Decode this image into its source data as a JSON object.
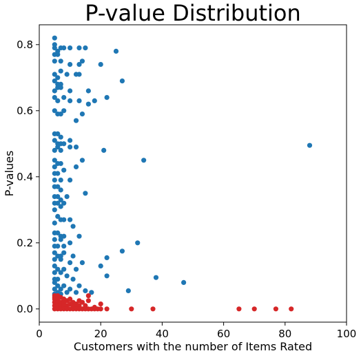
{
  "chart_data": {
    "type": "scatter",
    "title": "P-value Distribution",
    "xlabel": "Customers with the number of Items Rated",
    "ylabel": "P-values",
    "xlim": [
      0,
      100
    ],
    "ylim": [
      -0.04,
      0.86
    ],
    "xticks": [
      0,
      20,
      40,
      60,
      80,
      100
    ],
    "yticks": [
      0.0,
      0.2,
      0.4,
      0.6,
      0.8
    ],
    "xtick_labels": [
      "0",
      "20",
      "40",
      "60",
      "80",
      "100"
    ],
    "ytick_labels": [
      "0.0",
      "0.2",
      "0.4",
      "0.6",
      "0.8"
    ],
    "grid": false,
    "colors": {
      "high": "#1f77b4",
      "low": "#d62728"
    },
    "series": [
      {
        "color": "#1f77b4",
        "points": [
          [
            5,
            0.82
          ],
          [
            5,
            0.8
          ],
          [
            5,
            0.79
          ],
          [
            6,
            0.78
          ],
          [
            7,
            0.79
          ],
          [
            8,
            0.79
          ],
          [
            10,
            0.79
          ],
          [
            13,
            0.79
          ],
          [
            15,
            0.79
          ],
          [
            5,
            0.77
          ],
          [
            6,
            0.77
          ],
          [
            5,
            0.75
          ],
          [
            7,
            0.75
          ],
          [
            14,
            0.75
          ],
          [
            10,
            0.74
          ],
          [
            13,
            0.74
          ],
          [
            20,
            0.74
          ],
          [
            25,
            0.78
          ],
          [
            5,
            0.71
          ],
          [
            6,
            0.7
          ],
          [
            7,
            0.72
          ],
          [
            9,
            0.71
          ],
          [
            12,
            0.71
          ],
          [
            13,
            0.71
          ],
          [
            5,
            0.69
          ],
          [
            6,
            0.68
          ],
          [
            7,
            0.68
          ],
          [
            27,
            0.69
          ],
          [
            5,
            0.66
          ],
          [
            6,
            0.67
          ],
          [
            7,
            0.67
          ],
          [
            10,
            0.66
          ],
          [
            16,
            0.66
          ],
          [
            5,
            0.64
          ],
          [
            6,
            0.63
          ],
          [
            8,
            0.64
          ],
          [
            10,
            0.63
          ],
          [
            13,
            0.63
          ],
          [
            16,
            0.62
          ],
          [
            18,
            0.63
          ],
          [
            22,
            0.64
          ],
          [
            5,
            0.6
          ],
          [
            6,
            0.59
          ],
          [
            7,
            0.59
          ],
          [
            8,
            0.6
          ],
          [
            14,
            0.59
          ],
          [
            12,
            0.57
          ],
          [
            5,
            0.53
          ],
          [
            6,
            0.53
          ],
          [
            7,
            0.52
          ],
          [
            5,
            0.51
          ],
          [
            6,
            0.5
          ],
          [
            7,
            0.5
          ],
          [
            8,
            0.5
          ],
          [
            10,
            0.51
          ],
          [
            6,
            0.49
          ],
          [
            5,
            0.48
          ],
          [
            7,
            0.48
          ],
          [
            10,
            0.49
          ],
          [
            12,
            0.49
          ],
          [
            21,
            0.48
          ],
          [
            88,
            0.495
          ],
          [
            5,
            0.45
          ],
          [
            6,
            0.44
          ],
          [
            7,
            0.44
          ],
          [
            5,
            0.43
          ],
          [
            8,
            0.42
          ],
          [
            12,
            0.43
          ],
          [
            14,
            0.45
          ],
          [
            34,
            0.45
          ],
          [
            5,
            0.41
          ],
          [
            6,
            0.41
          ],
          [
            5,
            0.39
          ],
          [
            7,
            0.39
          ],
          [
            10,
            0.39
          ],
          [
            5,
            0.37
          ],
          [
            6,
            0.37
          ],
          [
            7,
            0.36
          ],
          [
            15,
            0.35
          ],
          [
            5,
            0.34
          ],
          [
            6,
            0.34
          ],
          [
            7,
            0.33
          ],
          [
            9,
            0.34
          ],
          [
            5,
            0.32
          ],
          [
            6,
            0.32
          ],
          [
            8,
            0.32
          ],
          [
            5,
            0.3
          ],
          [
            7,
            0.31
          ],
          [
            6,
            0.28
          ],
          [
            7,
            0.27
          ],
          [
            5,
            0.26
          ],
          [
            8,
            0.27
          ],
          [
            10,
            0.27
          ],
          [
            5,
            0.23
          ],
          [
            6,
            0.23
          ],
          [
            7,
            0.22
          ],
          [
            8,
            0.22
          ],
          [
            11,
            0.25
          ],
          [
            5,
            0.21
          ],
          [
            7,
            0.21
          ],
          [
            13,
            0.22
          ],
          [
            5,
            0.19
          ],
          [
            6,
            0.19
          ],
          [
            8,
            0.19
          ],
          [
            10,
            0.2
          ],
          [
            32,
            0.2
          ],
          [
            5,
            0.17
          ],
          [
            6,
            0.16
          ],
          [
            7,
            0.16
          ],
          [
            8,
            0.17
          ],
          [
            11,
            0.16
          ],
          [
            27,
            0.175
          ],
          [
            5,
            0.15
          ],
          [
            7,
            0.15
          ],
          [
            10,
            0.14
          ],
          [
            14,
            0.14
          ],
          [
            22,
            0.155
          ],
          [
            5,
            0.13
          ],
          [
            6,
            0.12
          ],
          [
            8,
            0.12
          ],
          [
            5,
            0.11
          ],
          [
            7,
            0.11
          ],
          [
            12,
            0.12
          ],
          [
            20,
            0.13
          ],
          [
            5,
            0.09
          ],
          [
            6,
            0.09
          ],
          [
            9,
            0.1
          ],
          [
            11,
            0.09
          ],
          [
            22,
            0.1
          ],
          [
            38,
            0.095
          ],
          [
            5,
            0.08
          ],
          [
            6,
            0.07
          ],
          [
            8,
            0.07
          ],
          [
            10,
            0.06
          ],
          [
            13,
            0.07
          ],
          [
            47,
            0.08
          ],
          [
            5,
            0.06
          ],
          [
            7,
            0.06
          ],
          [
            15,
            0.055
          ],
          [
            29,
            0.055
          ],
          [
            6,
            0.05
          ],
          [
            9,
            0.05
          ],
          [
            12,
            0.05
          ],
          [
            17,
            0.05
          ],
          [
            5,
            0.045
          ],
          [
            7,
            0.045
          ]
        ]
      },
      {
        "color": "#d62728",
        "points": [
          [
            5,
            0.04
          ],
          [
            5,
            0.035
          ],
          [
            5,
            0.03
          ],
          [
            5,
            0.02
          ],
          [
            5,
            0.01
          ],
          [
            5,
            0.0
          ],
          [
            6,
            0.04
          ],
          [
            6,
            0.03
          ],
          [
            6,
            0.02
          ],
          [
            6,
            0.01
          ],
          [
            6,
            0.0
          ],
          [
            7,
            0.035
          ],
          [
            7,
            0.02
          ],
          [
            7,
            0.01
          ],
          [
            7,
            0.0
          ],
          [
            8,
            0.03
          ],
          [
            8,
            0.02
          ],
          [
            8,
            0.01
          ],
          [
            8,
            0.0
          ],
          [
            9,
            0.025
          ],
          [
            9,
            0.01
          ],
          [
            9,
            0.0
          ],
          [
            10,
            0.03
          ],
          [
            10,
            0.015
          ],
          [
            10,
            0.0
          ],
          [
            11,
            0.02
          ],
          [
            11,
            0.01
          ],
          [
            11,
            0.0
          ],
          [
            12,
            0.015
          ],
          [
            12,
            0.005
          ],
          [
            12,
            0.0
          ],
          [
            13,
            0.025
          ],
          [
            13,
            0.01
          ],
          [
            13,
            0.0
          ],
          [
            14,
            0.02
          ],
          [
            14,
            0.0
          ],
          [
            15,
            0.01
          ],
          [
            15,
            0.0
          ],
          [
            16,
            0.04
          ],
          [
            16,
            0.025
          ],
          [
            16,
            0.0
          ],
          [
            17,
            0.0
          ],
          [
            18,
            0.005
          ],
          [
            18,
            0.0
          ],
          [
            19,
            0.0
          ],
          [
            20,
            0.015
          ],
          [
            20,
            0.0
          ],
          [
            22,
            0.0
          ],
          [
            30,
            0.0
          ],
          [
            37,
            0.0
          ],
          [
            65,
            0.0
          ],
          [
            70,
            0.0
          ],
          [
            77,
            0.0
          ],
          [
            82,
            0.0
          ]
        ]
      }
    ]
  }
}
